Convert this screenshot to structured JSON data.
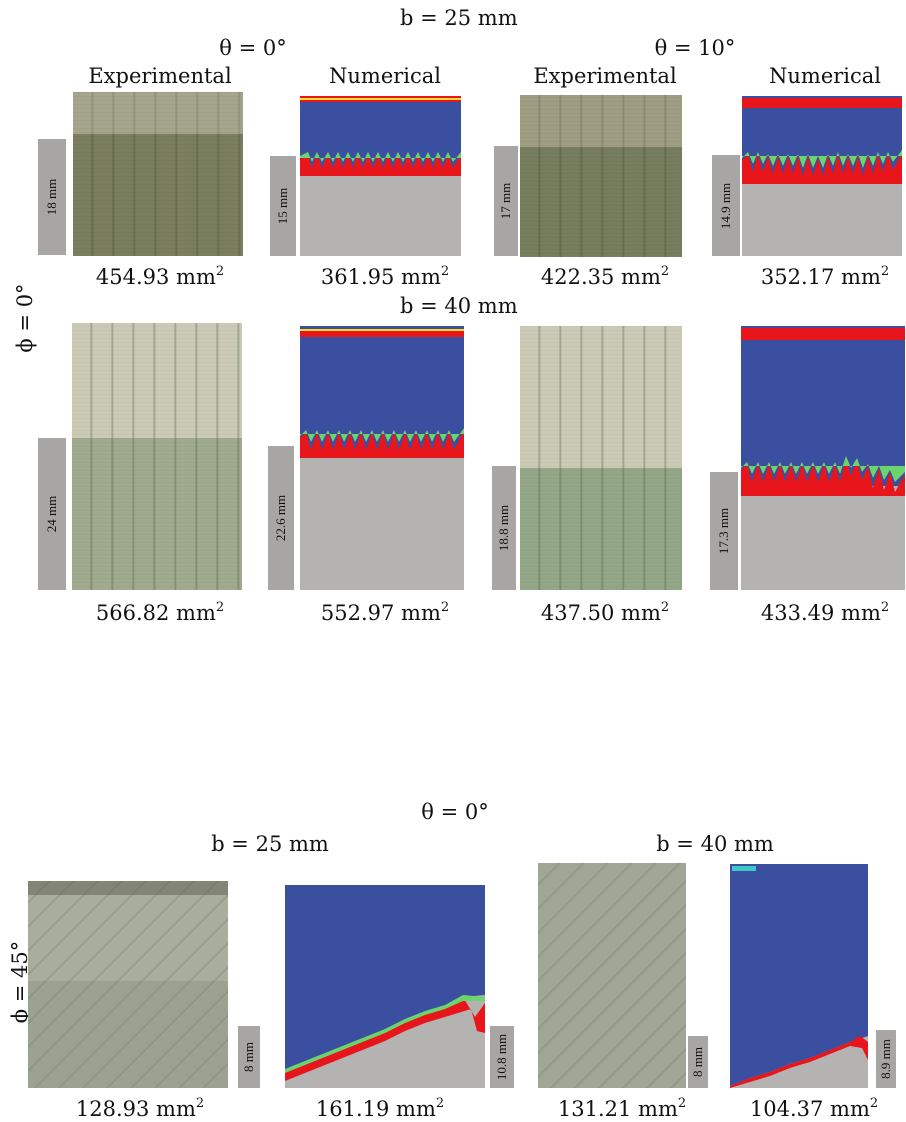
{
  "top": {
    "b25": "b = 25 mm",
    "b40": "b = 40 mm",
    "theta0": "θ = 0°",
    "theta10": "θ = 10°",
    "phi": "ϕ = 0°",
    "col_exp_1": "Experimental",
    "col_num_1": "Numerical",
    "col_exp_2": "Experimental",
    "col_num_2": "Numerical",
    "row1": {
      "scales": [
        "18 mm",
        "15 mm",
        "17 mm",
        "14.9 mm"
      ],
      "areas": [
        "454.93",
        "361.95",
        "422.35",
        "352.17"
      ]
    },
    "row2": {
      "scales": [
        "24 mm",
        "22.6 mm",
        "18.8 mm",
        "17.3 mm"
      ],
      "areas": [
        "566.82",
        "552.97",
        "437.50",
        "433.49"
      ]
    },
    "unit": "mm",
    "unit_exp": "2"
  },
  "bottom": {
    "theta0": "θ = 0°",
    "b25": "b = 25 mm",
    "b40": "b = 40 mm",
    "phi": "ϕ = 45°",
    "scales": [
      "8 mm",
      "10.8 mm",
      "8 mm",
      "8.9 mm"
    ],
    "areas": [
      "128.93",
      "161.19",
      "131.21",
      "104.37"
    ]
  },
  "colors": {
    "blue": "#3a4fa0",
    "gray": "#b5b3b2",
    "red": "#e8161b",
    "green": "#6cd46c",
    "cyan": "#3fc8c8",
    "yellow": "#f0e02a"
  }
}
